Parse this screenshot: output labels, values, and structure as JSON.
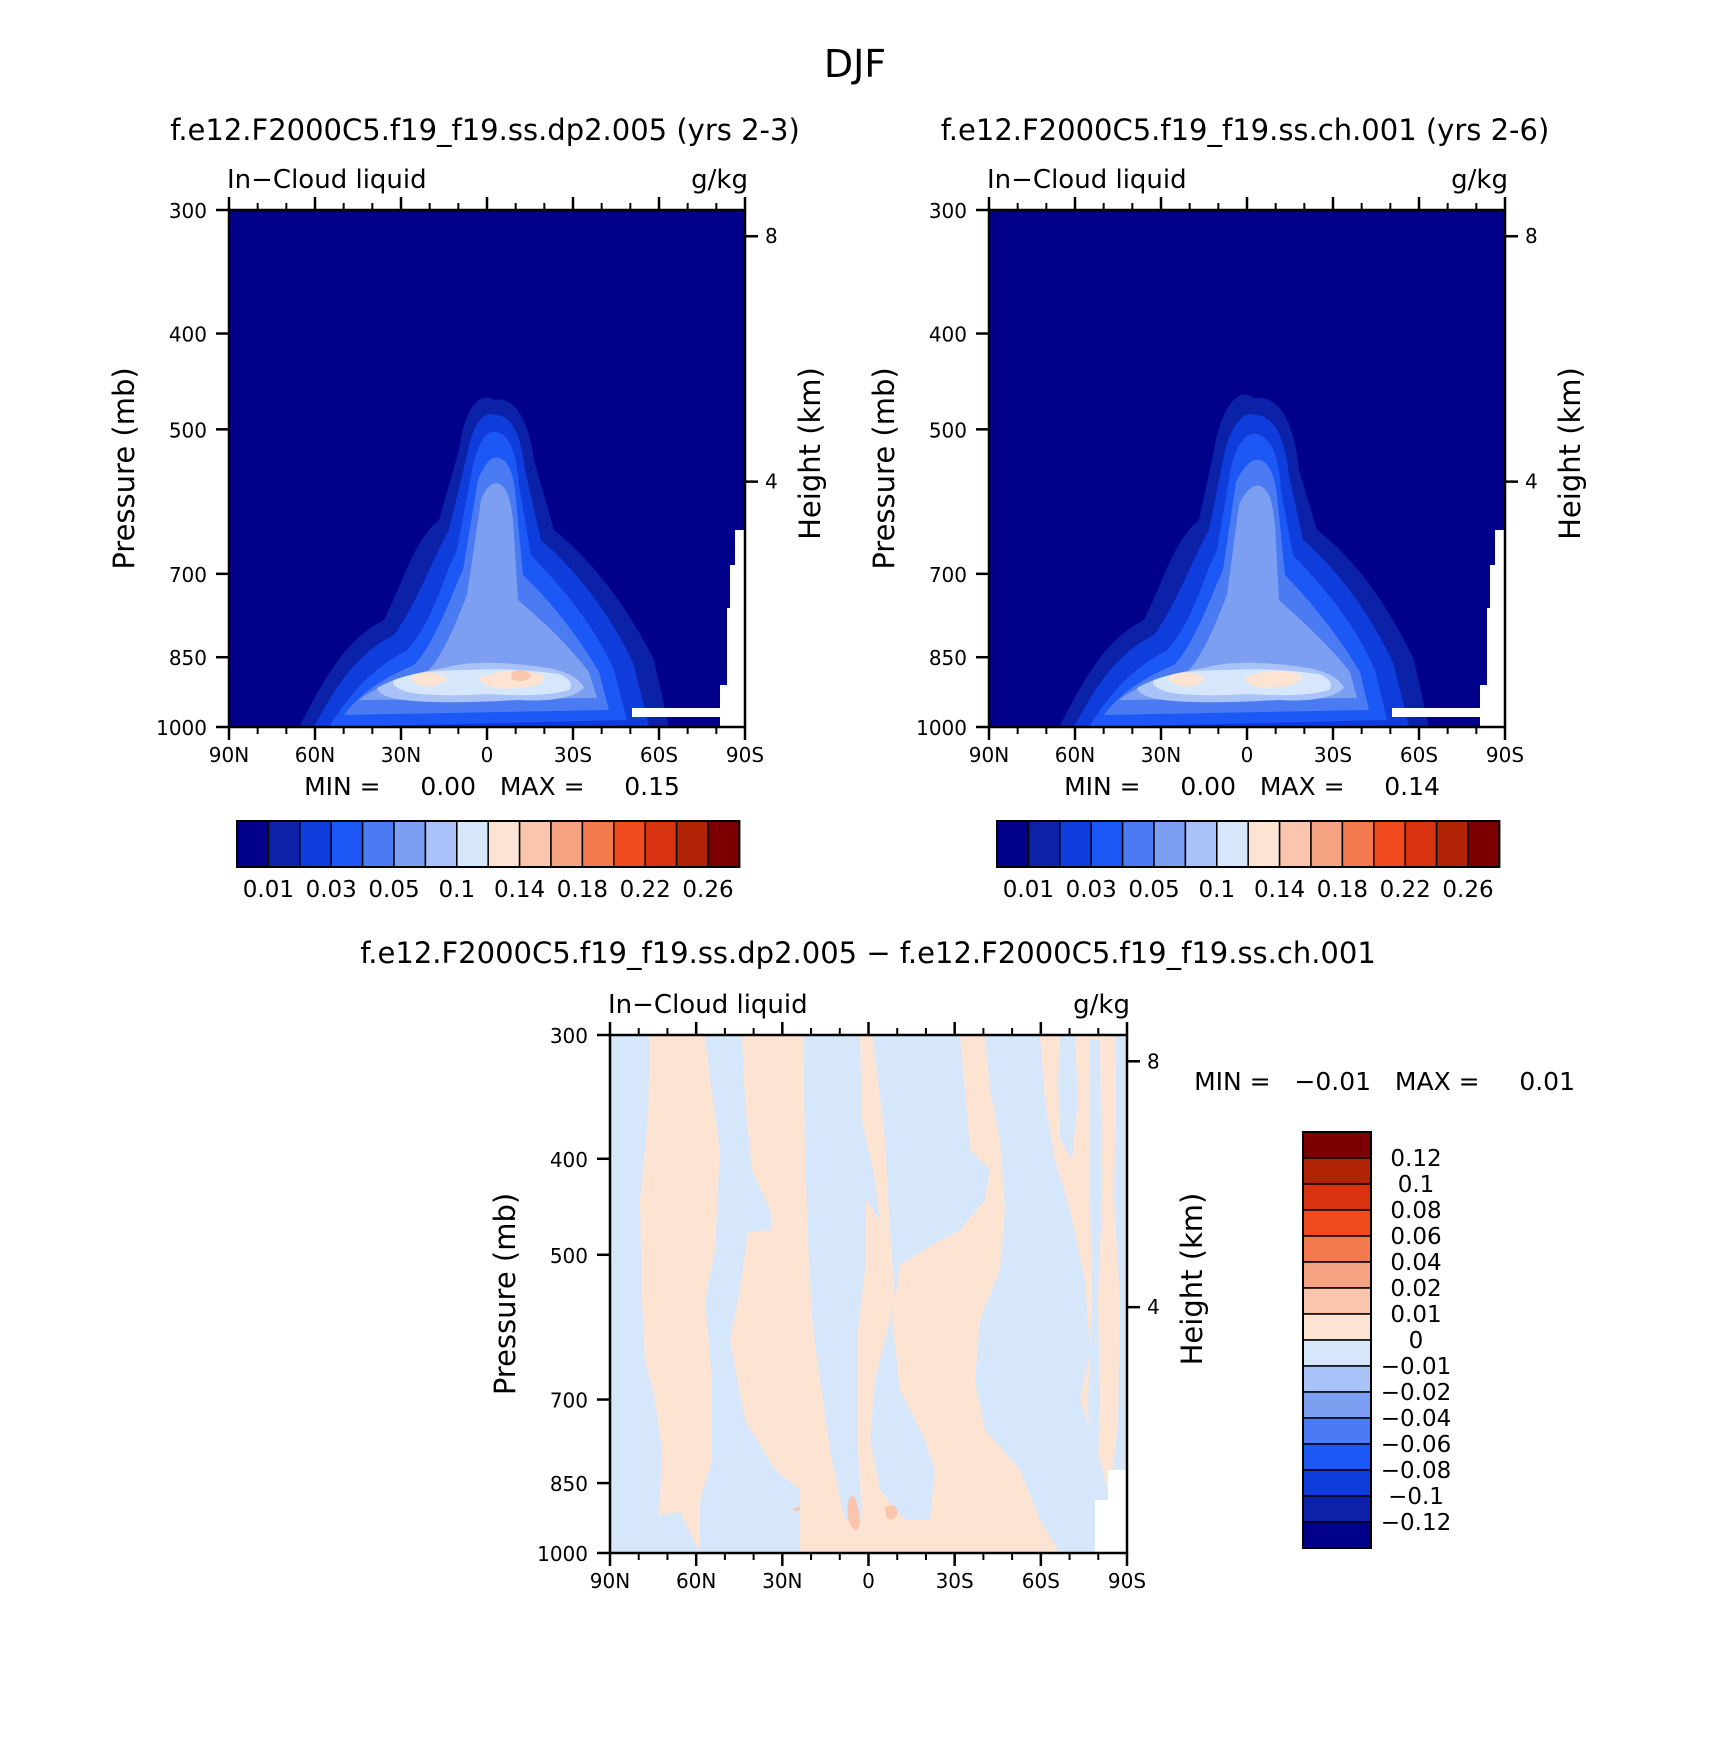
{
  "page_title": "DJF",
  "chart_data": [
    {
      "type": "heatmap",
      "title": "f.e12.F2000C5.f19_f19.ss.dp2.005 (yrs 2-3)",
      "left_label": "In−Cloud liquid",
      "right_label": "g/kg",
      "ylabel": "Pressure (mb)",
      "ylabel_right": "Height (km)",
      "x_ticks": [
        "90N",
        "60N",
        "30N",
        "0",
        "30S",
        "60S",
        "90S"
      ],
      "x_values": [
        90,
        60,
        30,
        0,
        -30,
        -60,
        -90
      ],
      "y_ticks": [
        "300",
        "400",
        "500",
        "700",
        "850",
        "1000"
      ],
      "y_values": [
        300,
        400,
        500,
        700,
        850,
        1000
      ],
      "y_right_ticks": [
        "8",
        "4"
      ],
      "y_right_values": [
        8,
        4
      ],
      "ylim": [
        300,
        1000
      ],
      "stats": "MIN =     0.00   MAX =     0.15",
      "levels": [
        "0.01",
        "0.03",
        "0.05",
        "0.1",
        "0.14",
        "0.18",
        "0.22",
        "0.26"
      ],
      "value_min": 0.0,
      "value_max": 0.15
    },
    {
      "type": "heatmap",
      "title": "f.e12.F2000C5.f19_f19.ss.ch.001 (yrs 2-6)",
      "left_label": "In−Cloud liquid",
      "right_label": "g/kg",
      "ylabel": "Pressure (mb)",
      "ylabel_right": "Height (km)",
      "x_ticks": [
        "90N",
        "60N",
        "30N",
        "0",
        "30S",
        "60S",
        "90S"
      ],
      "x_values": [
        90,
        60,
        30,
        0,
        -30,
        -60,
        -90
      ],
      "y_ticks": [
        "300",
        "400",
        "500",
        "700",
        "850",
        "1000"
      ],
      "y_values": [
        300,
        400,
        500,
        700,
        850,
        1000
      ],
      "y_right_ticks": [
        "8",
        "4"
      ],
      "y_right_values": [
        8,
        4
      ],
      "ylim": [
        300,
        1000
      ],
      "stats": "MIN =     0.00   MAX =     0.14",
      "levels": [
        "0.01",
        "0.03",
        "0.05",
        "0.1",
        "0.14",
        "0.18",
        "0.22",
        "0.26"
      ],
      "value_min": 0.0,
      "value_max": 0.14
    },
    {
      "type": "heatmap",
      "title": "f.e12.F2000C5.f19_f19.ss.dp2.005 − f.e12.F2000C5.f19_f19.ss.ch.001",
      "left_label": "In−Cloud liquid",
      "right_label": "g/kg",
      "ylabel": "Pressure (mb)",
      "ylabel_right": "Height (km)",
      "x_ticks": [
        "90N",
        "60N",
        "30N",
        "0",
        "30S",
        "60S",
        "90S"
      ],
      "x_values": [
        90,
        60,
        30,
        0,
        -30,
        -60,
        -90
      ],
      "y_ticks": [
        "300",
        "400",
        "500",
        "700",
        "850",
        "1000"
      ],
      "y_values": [
        300,
        400,
        500,
        700,
        850,
        1000
      ],
      "y_right_ticks": [
        "8",
        "4"
      ],
      "y_right_values": [
        8,
        4
      ],
      "ylim": [
        300,
        1000
      ],
      "stats": "MIN =   −0.01   MAX =     0.01",
      "levels": [
        "0.12",
        "0.1",
        "0.08",
        "0.06",
        "0.04",
        "0.02",
        "0.01",
        "0",
        "−0.01",
        "−0.02",
        "−0.04",
        "−0.06",
        "−0.08",
        "−0.1",
        "−0.12"
      ],
      "value_min": -0.01,
      "value_max": 0.01
    }
  ],
  "palettes": {
    "sequential": [
      "#00008a",
      "#0a21a8",
      "#0f3ddb",
      "#1c58f5",
      "#4a7bf2",
      "#7c9ff2",
      "#a9c2f7",
      "#d6e7fb",
      "#fde4d2",
      "#f9c5ad",
      "#f5a383",
      "#f27a4e",
      "#f04a1f",
      "#d73310",
      "#b02405",
      "#7d0000"
    ],
    "diverging": [
      "#7d0000",
      "#b02405",
      "#d73310",
      "#f04a1f",
      "#f27a4e",
      "#f5a383",
      "#f9c5ad",
      "#fde4d2",
      "#d6e7fb",
      "#a9c2f7",
      "#7c9ff2",
      "#4a7bf2",
      "#1c58f5",
      "#0f3ddb",
      "#0a21a8",
      "#00008a"
    ]
  }
}
